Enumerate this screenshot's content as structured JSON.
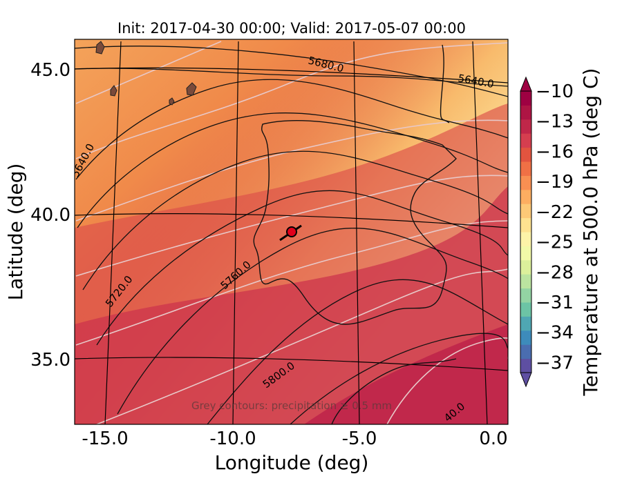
{
  "title": "Init: 2017-04-30 00:00; Valid: 2017-05-07 00:00",
  "axes": {
    "xlabel": "Longitude (deg)",
    "ylabel": "Latitude (deg)",
    "xticks": [
      "-15.0",
      "-10.0",
      "-5.0",
      "0.0"
    ],
    "yticks": [
      "45.0",
      "40.0",
      "35.0"
    ]
  },
  "colorbar": {
    "label": "Temperature at 500.0 hPa (deg C)",
    "ticks": [
      "−10",
      "−13",
      "−16",
      "−19",
      "−22",
      "−25",
      "−28",
      "−31",
      "−34",
      "−37"
    ],
    "range": [
      -38,
      -10
    ],
    "extend": "both",
    "colormap": "Spectral"
  },
  "contour_labels": [
    "5680.0",
    "5640.0",
    "5640.0",
    "5720.0",
    "5760.0",
    "5800.0",
    "40.0"
  ],
  "note": "Grey contours: precipitation ≥ 0.5 mm",
  "marker": {
    "lon": -7.7,
    "lat": 39.3,
    "color": "#e0001c"
  },
  "field_colors": {
    "coast": "#ffffff",
    "fill_north": "#f08a4a",
    "fill_mid": "#e0584a",
    "fill_south": "#c9334c",
    "fill_far_south": "#bc1f4a"
  }
}
